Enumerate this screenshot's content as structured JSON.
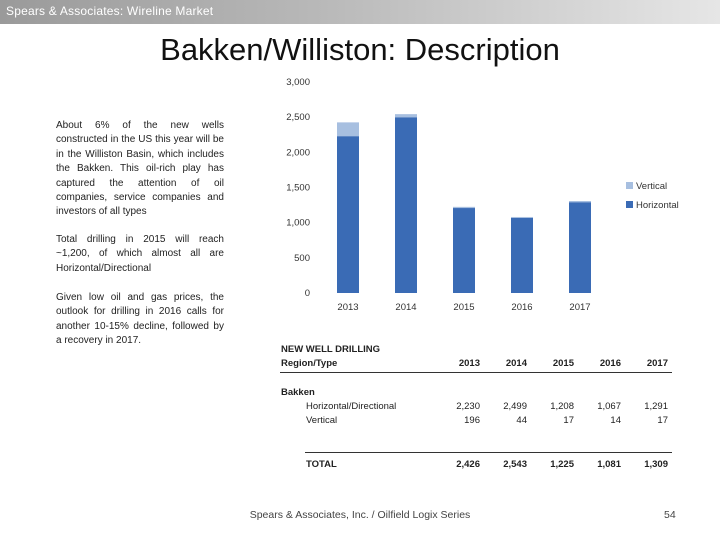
{
  "header": {
    "banner": "Spears & Associates:  Wireline Market"
  },
  "slide": {
    "title": "Bakken/Williston:  Description"
  },
  "text": {
    "para1": "About 6% of the new wells constructed in the US this year will be in the Williston Basin, which includes the Bakken. This oil-rich play has captured the attention of oil companies, service companies and investors of all types",
    "para2": "Total drilling in 2015 will reach ~1,200, of which almost all are Horizontal/Directional",
    "para3": "Given low oil and gas prices, the outlook for drilling in 2016 calls for another 10-15% decline, followed by a recovery in 2017."
  },
  "chart_data": {
    "type": "bar",
    "stacked": true,
    "categories": [
      "2013",
      "2014",
      "2015",
      "2016",
      "2017"
    ],
    "series": [
      {
        "name": "Horizontal",
        "values": [
          2230,
          2499,
          1208,
          1067,
          1291
        ],
        "color": "#3a6bb5"
      },
      {
        "name": "Vertical",
        "values": [
          196,
          44,
          17,
          14,
          17
        ],
        "color": "#a7bfe0"
      }
    ],
    "ylim": [
      0,
      3000
    ],
    "yticks": [
      "0",
      "500",
      "1,000",
      "1,500",
      "2,000",
      "2,500",
      "3,000"
    ],
    "legend": "right",
    "grid": false
  },
  "table": {
    "title_line1": "NEW WELL DRILLING",
    "title_line2": "Region/Type",
    "years": [
      "2013",
      "2014",
      "2015",
      "2016",
      "2017"
    ],
    "section": "Bakken",
    "rows": [
      {
        "label": "Horizontal/Directional",
        "values": [
          "2,230",
          "2,499",
          "1,208",
          "1,067",
          "1,291"
        ]
      },
      {
        "label": "Vertical",
        "values": [
          "196",
          "44",
          "17",
          "14",
          "17"
        ]
      }
    ],
    "total": {
      "label": "TOTAL",
      "values": [
        "2,426",
        "2,543",
        "1,225",
        "1,081",
        "1,309"
      ]
    }
  },
  "footer": {
    "source": "Spears & Associates, Inc. / Oilfield Logix Series",
    "page": "54"
  }
}
